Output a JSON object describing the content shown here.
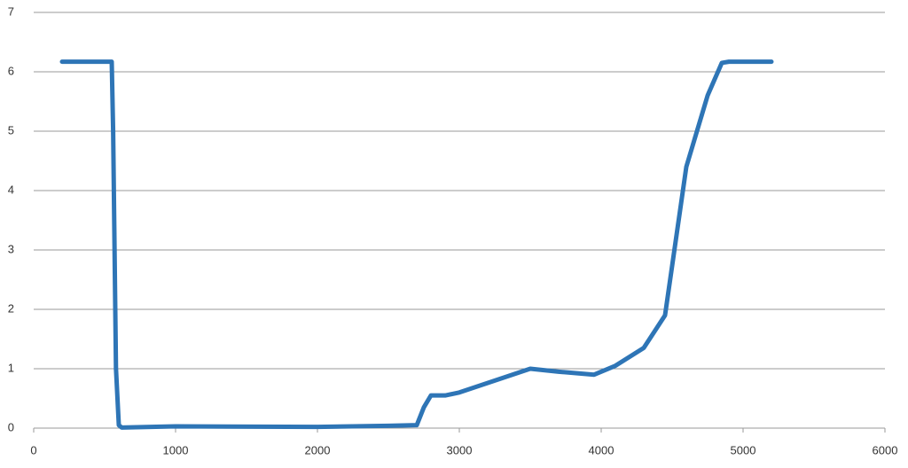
{
  "chart_data": {
    "type": "line",
    "x": [
      200,
      550,
      560,
      580,
      600,
      620,
      1000,
      2000,
      2500,
      2700,
      2750,
      2800,
      2900,
      3000,
      3500,
      3700,
      3950,
      4100,
      4300,
      4450,
      4600,
      4750,
      4850,
      4900,
      5200
    ],
    "values": [
      6.17,
      6.17,
      5,
      1,
      0.05,
      0.01,
      0.03,
      0.02,
      0.04,
      0.05,
      0.35,
      0.55,
      0.55,
      0.6,
      1,
      0.95,
      0.9,
      1.05,
      1.35,
      1.9,
      4.4,
      5.6,
      6.15,
      6.17,
      6.17
    ],
    "color": "#2e75b6",
    "xlim": [
      0,
      6000
    ],
    "xticks": [
      0,
      1000,
      2000,
      3000,
      4000,
      5000,
      6000
    ],
    "ylim": [
      0,
      7
    ],
    "yticks": [
      0,
      1,
      2,
      3,
      4,
      5,
      6,
      7
    ],
    "grid": true
  }
}
